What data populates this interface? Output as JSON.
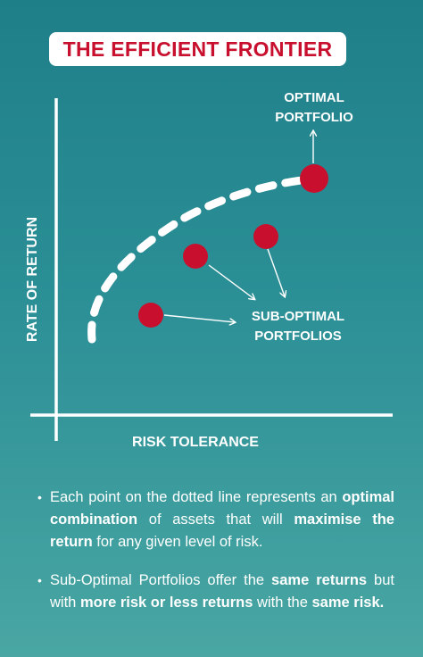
{
  "title": "THE EFFICIENT FRONTIER",
  "colors": {
    "accent": "#c8102e",
    "background_top": "#1f7f89",
    "background_bottom": "#49a6a3",
    "line": "#ffffff"
  },
  "diagram": {
    "y_axis_label": "RATE OF RETURN",
    "x_axis_label": "RISK TOLERANCE",
    "optimal_label": [
      "OPTIMAL",
      "PORTFOLIO"
    ],
    "suboptimal_label": [
      "SUB-OPTIMAL",
      "PORTFOLIOS"
    ]
  },
  "bullets": [
    [
      {
        "text": "Each point on the dotted line represents an ",
        "bold": false
      },
      {
        "text": "optimal combination",
        "bold": true
      },
      {
        "text": " of assets that will ",
        "bold": false
      },
      {
        "text": "maximise the return",
        "bold": true
      },
      {
        "text": " for any given level of risk.",
        "bold": false
      }
    ],
    [
      {
        "text": "Sub-Optimal Portfolios offer the ",
        "bold": false
      },
      {
        "text": "same returns",
        "bold": true
      },
      {
        "text": " but with ",
        "bold": false
      },
      {
        "text": "more risk or less returns",
        "bold": true
      },
      {
        "text": " with the ",
        "bold": false
      },
      {
        "text": "same risk.",
        "bold": true
      }
    ]
  ]
}
